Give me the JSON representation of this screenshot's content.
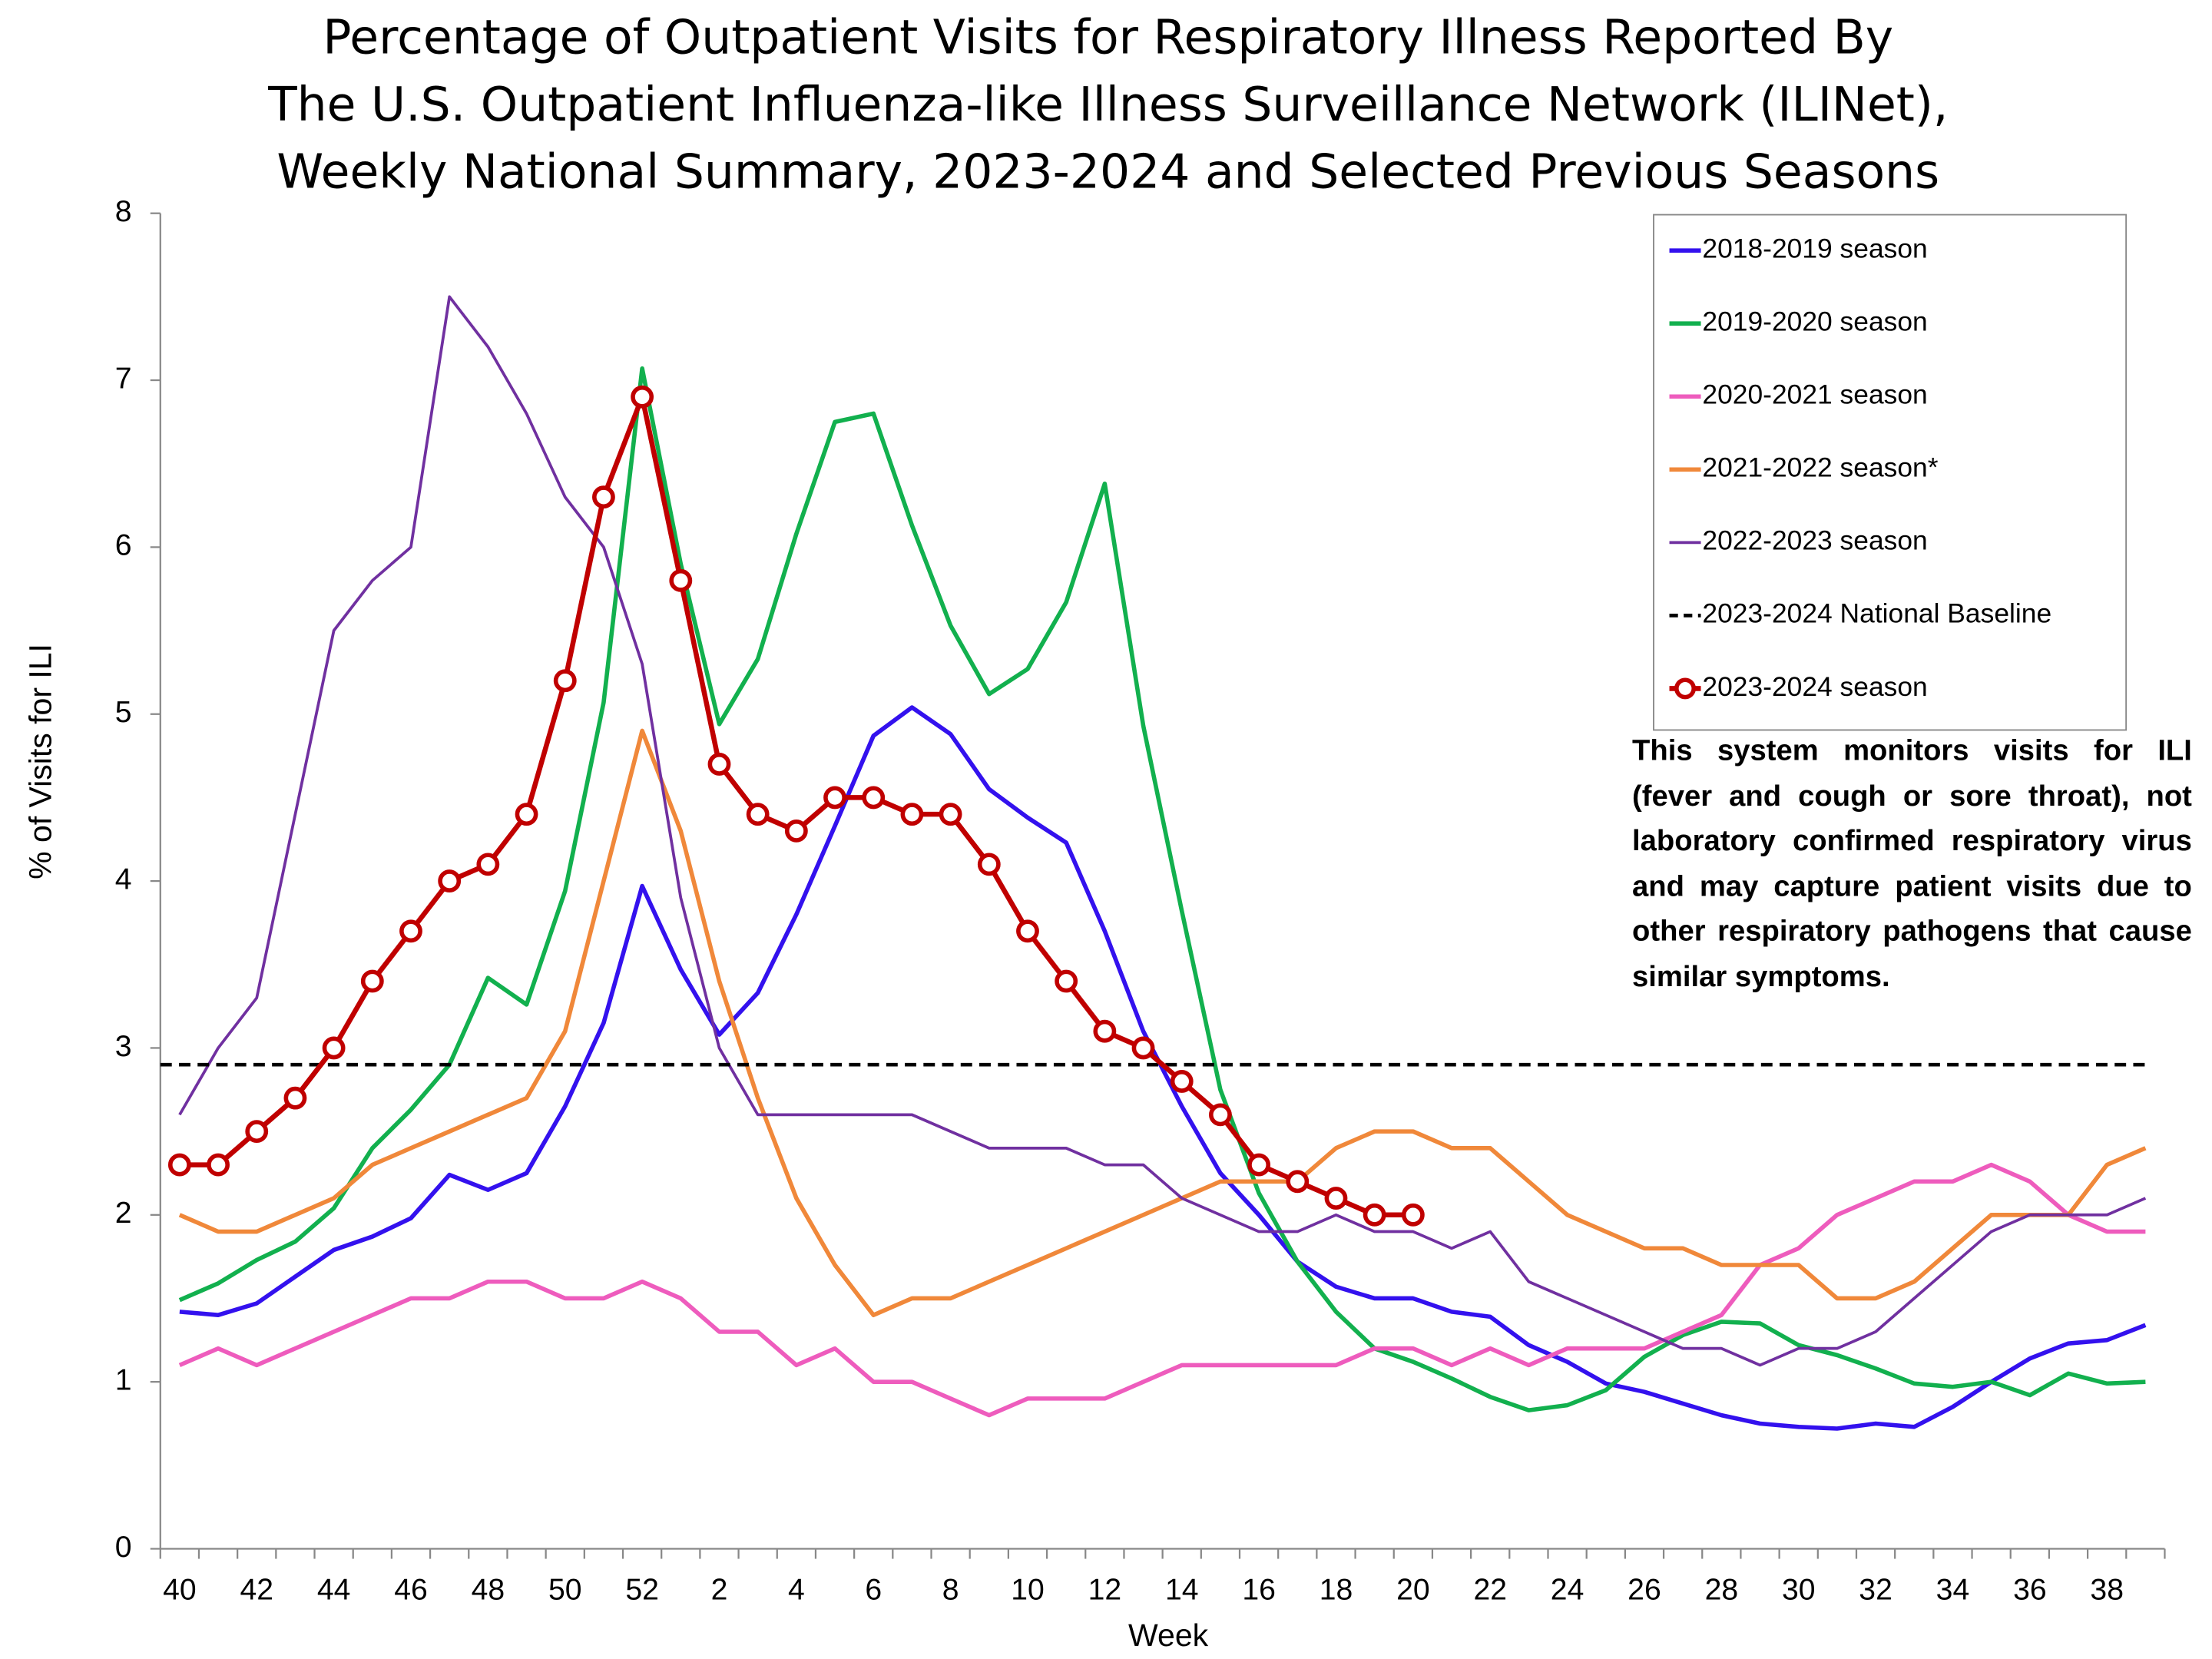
{
  "chart_data": {
    "type": "line",
    "title": [
      "Percentage of Outpatient Visits for Respiratory Illness Reported By",
      "The U.S. Outpatient Influenza-like Illness Surveillance Network (ILINet),",
      "Weekly National Summary, 2023-2024 and Selected Previous Seasons"
    ],
    "x_label": "Week",
    "y_label": "% of Visits for ILI",
    "annotation": "This system monitors visits for ILI (fever and cough or sore throat), not laboratory confirmed respiratory virus and may capture patient visits due to other respiratory pathogens that cause similar symptoms.",
    "categories": [
      "40",
      null,
      "42",
      null,
      "44",
      null,
      "46",
      null,
      "48",
      null,
      "50",
      null,
      "52",
      null,
      "2",
      null,
      "4",
      null,
      "6",
      null,
      "8",
      null,
      "10",
      null,
      "12",
      null,
      "14",
      null,
      "16",
      null,
      "18",
      null,
      "20",
      null,
      "22",
      null,
      "24",
      null,
      "26",
      null,
      "28",
      null,
      "30",
      null,
      "32",
      null,
      "34",
      null,
      "36",
      null,
      "38",
      null
    ],
    "ylim": [
      0,
      8
    ],
    "yticks": [
      0,
      1,
      2,
      3,
      4,
      5,
      6,
      7,
      8
    ],
    "grid": false,
    "legend": "top-right",
    "series": [
      {
        "name": "2018-2019 season",
        "color": "#3311ee",
        "width": 3,
        "values": [
          1.42,
          1.4,
          1.47,
          1.63,
          1.79,
          1.87,
          1.98,
          2.24,
          2.15,
          2.25,
          2.65,
          3.15,
          3.97,
          3.47,
          3.08,
          3.33,
          3.8,
          4.33,
          4.87,
          5.04,
          4.88,
          4.55,
          4.38,
          4.23,
          3.7,
          3.1,
          2.65,
          2.25,
          2.0,
          1.72,
          1.57,
          1.5,
          1.5,
          1.42,
          1.39,
          1.22,
          1.12,
          0.99,
          0.94,
          0.87,
          0.8,
          0.75,
          0.73,
          0.72,
          0.75,
          0.73,
          0.85,
          1.0,
          1.14,
          1.23,
          1.25,
          1.34
        ]
      },
      {
        "name": "2019-2020 season",
        "color": "#12b04e",
        "width": 3,
        "values": [
          1.49,
          1.59,
          1.73,
          1.84,
          2.04,
          2.4,
          2.63,
          2.9,
          3.42,
          3.26,
          3.94,
          5.07,
          7.07,
          5.9,
          4.94,
          5.33,
          6.08,
          6.75,
          6.8,
          6.13,
          5.53,
          5.12,
          5.27,
          5.67,
          6.38,
          4.93,
          3.82,
          2.75,
          2.13,
          1.72,
          1.42,
          1.2,
          1.12,
          1.02,
          0.91,
          0.83,
          0.86,
          0.95,
          1.15,
          1.28,
          1.36,
          1.35,
          1.22,
          1.16,
          1.08,
          0.99,
          0.97,
          1.0,
          0.92,
          1.05,
          0.99,
          1.0
        ]
      },
      {
        "name": "2020-2021 season",
        "color": "#ee5cbd",
        "width": 3,
        "values": [
          1.1,
          1.2,
          1.1,
          1.2,
          1.3,
          1.4,
          1.5,
          1.5,
          1.6,
          1.6,
          1.5,
          1.5,
          1.6,
          1.5,
          1.3,
          1.3,
          1.1,
          1.2,
          1.0,
          1.0,
          0.9,
          0.8,
          0.9,
          0.9,
          0.9,
          1.0,
          1.1,
          1.1,
          1.1,
          1.1,
          1.1,
          1.2,
          1.2,
          1.1,
          1.2,
          1.1,
          1.2,
          1.2,
          1.2,
          1.3,
          1.4,
          1.7,
          1.8,
          2.0,
          2.1,
          2.2,
          2.2,
          2.3,
          2.2,
          2.0,
          1.9,
          1.9
        ]
      },
      {
        "name": "2021-2022 season*",
        "color": "#f0883a",
        "width": 3,
        "values": [
          2.0,
          1.9,
          1.9,
          2.0,
          2.1,
          2.3,
          2.4,
          2.5,
          2.6,
          2.7,
          3.1,
          4.0,
          4.9,
          4.3,
          3.4,
          2.7,
          2.1,
          1.7,
          1.4,
          1.5,
          1.5,
          1.6,
          1.7,
          1.8,
          1.9,
          2.0,
          2.1,
          2.2,
          2.2,
          2.2,
          2.4,
          2.5,
          2.5,
          2.4,
          2.4,
          2.2,
          2.0,
          1.9,
          1.8,
          1.8,
          1.7,
          1.7,
          1.7,
          1.5,
          1.5,
          1.6,
          1.8,
          2.0,
          2.0,
          2.0,
          2.3,
          2.4
        ]
      },
      {
        "name": "2022-2023 season",
        "color": "#7030a0",
        "width": 2,
        "values": [
          2.6,
          3.0,
          3.3,
          4.4,
          5.5,
          5.8,
          6.0,
          7.5,
          7.2,
          6.8,
          6.3,
          6.0,
          5.3,
          3.9,
          3.0,
          2.6,
          2.6,
          2.6,
          2.6,
          2.6,
          2.5,
          2.4,
          2.4,
          2.4,
          2.3,
          2.3,
          2.1,
          2.0,
          1.9,
          1.9,
          2.0,
          1.9,
          1.9,
          1.8,
          1.9,
          1.6,
          1.5,
          1.4,
          1.3,
          1.2,
          1.2,
          1.1,
          1.2,
          1.2,
          1.3,
          1.5,
          1.7,
          1.9,
          2.0,
          2.0,
          2.0,
          2.1
        ]
      },
      {
        "name": "2023-2024 National Baseline",
        "color": "#000000",
        "width": 2.5,
        "style": "dashed",
        "value": 2.9
      },
      {
        "name": "2023-2024 season",
        "color": "#c00000",
        "width": 3.5,
        "marker": "circle",
        "values": [
          2.3,
          2.3,
          2.5,
          2.7,
          3.0,
          3.4,
          3.7,
          4.0,
          4.1,
          4.4,
          5.2,
          6.3,
          6.9,
          5.8,
          4.7,
          4.4,
          4.3,
          4.5,
          4.5,
          4.4,
          4.4,
          4.1,
          3.7,
          3.4,
          3.1,
          3.0,
          2.8,
          2.6,
          2.3,
          2.2,
          2.1,
          2.0,
          2.0,
          null,
          null,
          null,
          null,
          null,
          null,
          null,
          null,
          null,
          null,
          null,
          null,
          null,
          null,
          null,
          null,
          null,
          null,
          null
        ]
      }
    ]
  }
}
